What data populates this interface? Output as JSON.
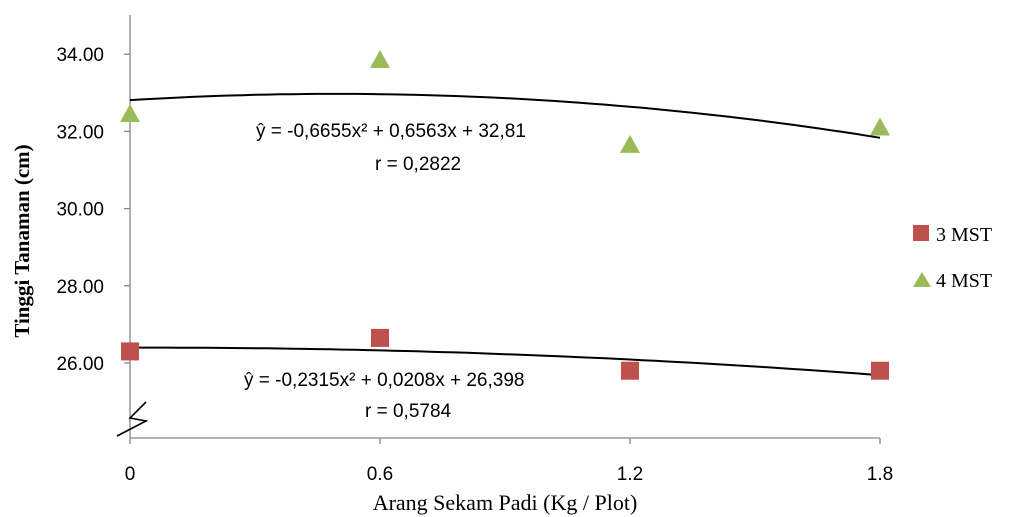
{
  "chart_data": {
    "type": "scatter",
    "xlabel": "Arang Sekam Padi (Kg / Plot)",
    "ylabel": "Tinggi Tanaman (cm)",
    "x": [
      0,
      0.6,
      1.2,
      1.8
    ],
    "x_tick_labels": [
      "0",
      "0.6",
      "1.2",
      "1.8"
    ],
    "y_ticks": [
      26,
      28,
      30,
      32,
      34
    ],
    "y_tick_labels": [
      "26.00",
      "28.00",
      "30.00",
      "32.00",
      "34.00"
    ],
    "ylim": [
      24.2,
      35
    ],
    "axis_break": true,
    "grid": false,
    "legend_position": "right",
    "series": [
      {
        "name": "3 MST",
        "marker": "square",
        "color": "#c0504d",
        "values": [
          26.3,
          26.65,
          25.8,
          25.8
        ],
        "trend": {
          "a": -0.2315,
          "b": 0.0208,
          "c": 26.398
        },
        "equation": "ŷ = -0,2315x² + 0,0208x + 26,398",
        "r_label": "r = 0,5784"
      },
      {
        "name": "4 MST",
        "marker": "triangle",
        "color": "#9bbb59",
        "values": [
          32.45,
          33.85,
          31.65,
          32.1
        ],
        "trend": {
          "a": -0.6655,
          "b": 0.6563,
          "c": 32.81
        },
        "equation": "ŷ = -0,6655x² + 0,6563x + 32,81",
        "r_label": "r  = 0,2822"
      }
    ]
  }
}
